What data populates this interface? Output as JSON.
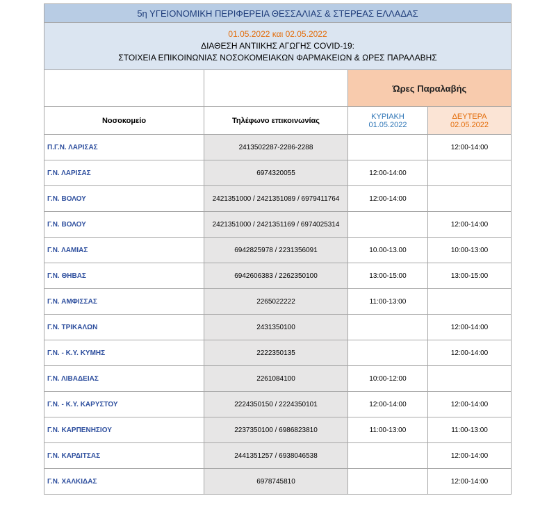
{
  "header": {
    "title": "5η ΥΓΕΙΟΝΟΜΙΚΗ ΠΕΡΙΦΕΡΕΙΑ ΘΕΣΣΑΛΙΑΣ & ΣΤΕΡΕΑΣ ΕΛΛΑΔΑΣ",
    "date": "01.05.2022 και 02.05.2022",
    "line1": "ΔΙΑΘΕΣΗ ΑΝΤΙΙΚΗΣ ΑΓΩΓΗΣ COVID-19:",
    "line2": "ΣΤΟΙΧΕΙΑ ΕΠΙΚΟΙΝΩΝΙΑΣ ΝΟΣΟΚΟΜΕΙΑΚΩΝ ΦΑΡΜΑΚΕΙΩΝ & ΩΡΕΣ ΠΑΡΑΛΑΒΗΣ"
  },
  "table": {
    "group_header": "Ώρες Παραλαβής",
    "columns": [
      "Νοσοκομείο",
      "Τηλέφωνο επικοινωνίας"
    ],
    "days": [
      {
        "day": "ΚΥΡΙΑΚΗ",
        "date": "01.05.2022"
      },
      {
        "day": "ΔΕΥΤΕΡΑ",
        "date": "02.05.2022"
      }
    ],
    "rows": [
      [
        "Π.Γ.Ν. ΛΑΡΙΣΑΣ",
        "2413502287-2286-2288",
        null,
        "12:00-14:00"
      ],
      [
        "Γ.Ν. ΛΑΡΙΣΑΣ",
        "6974320055",
        "12:00-14:00",
        null
      ],
      [
        "Γ.Ν. ΒΟΛΟΥ",
        "2421351000 / 2421351089 / 6979411764",
        "12:00-14:00",
        null
      ],
      [
        "Γ.Ν. ΒΟΛΟΥ",
        "2421351000 / 2421351169 / 6974025314",
        null,
        "12:00-14:00"
      ],
      [
        "Γ.Ν. ΛΑΜΙΑΣ",
        "6942825978 / 2231356091",
        "10.00-13.00",
        "10:00-13:00"
      ],
      [
        "Γ.Ν. ΘΗΒΑΣ",
        "6942606383 /  2262350100",
        "13:00-15:00",
        "13:00-15:00"
      ],
      [
        "Γ.Ν. ΑΜΦΙΣΣΑΣ",
        "2265022222",
        "11:00-13:00",
        null
      ],
      [
        "Γ.Ν. ΤΡΙΚΑΛΩΝ",
        "2431350100",
        null,
        "12:00-14:00"
      ],
      [
        "Γ.Ν. - Κ.Υ. ΚΥΜΗΣ",
        "2222350135",
        null,
        "12:00-14:00"
      ],
      [
        "Γ.Ν. ΛΙΒΑΔΕΙΑΣ",
        "2261084100",
        "10:00-12:00",
        null
      ],
      [
        "Γ.Ν. -  Κ.Υ. ΚΑΡΥΣΤΟΥ",
        "2224350150 / 2224350101",
        "12:00-14:00",
        "12:00-14:00"
      ],
      [
        "Γ.Ν. ΚΑΡΠΕΝΗΣΙΟΥ",
        "2237350100 / 6986823810",
        "11:00-13:00",
        "11:00-13:00"
      ],
      [
        "Γ.Ν. ΚΑΡΔΙΤΣΑΣ",
        "2441351257 / 6938046538",
        null,
        "12:00-14:00"
      ],
      [
        "Γ.Ν. ΧΑΛΚΙΔΑΣ",
        "6978745810",
        null,
        "12:00-14:00"
      ]
    ]
  }
}
